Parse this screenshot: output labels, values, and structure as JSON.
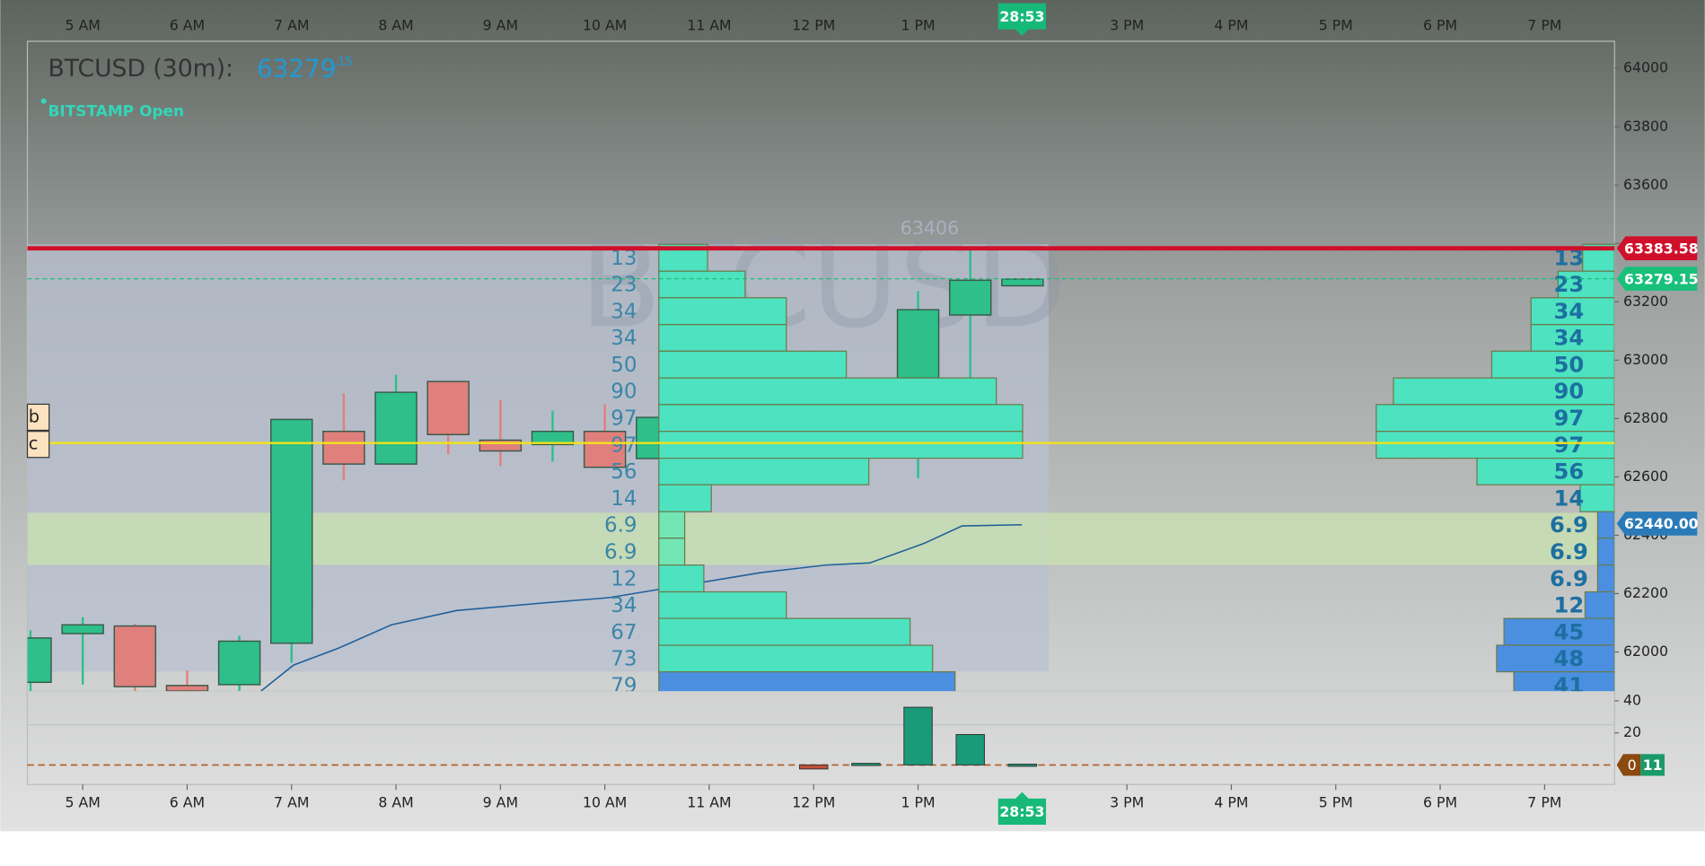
{
  "chart_data": {
    "type": "candlestick",
    "title": "BTCUSD (30m):",
    "last_price": "63279",
    "last_price_fraction": ".15",
    "exchange_status": "BITSTAMP Open",
    "watermark": "BTCUSD",
    "countdown": "28:53",
    "left_tags": [
      "b",
      "c"
    ],
    "xlim": [
      4.47,
      19.67
    ],
    "xticks": [
      {
        "value": 5,
        "label": "5 AM"
      },
      {
        "value": 6,
        "label": "6 AM"
      },
      {
        "value": 7,
        "label": "7 AM"
      },
      {
        "value": 8,
        "label": "8 AM"
      },
      {
        "value": 9,
        "label": "9 AM"
      },
      {
        "value": 10,
        "label": "10 AM"
      },
      {
        "value": 11,
        "label": "11 AM"
      },
      {
        "value": 12,
        "label": "12 PM"
      },
      {
        "value": 13,
        "label": "1 PM"
      },
      {
        "value": 15,
        "label": "3 PM"
      },
      {
        "value": 16,
        "label": "4 PM"
      },
      {
        "value": 17,
        "label": "5 PM"
      },
      {
        "value": 18,
        "label": "6 PM"
      },
      {
        "value": 19,
        "label": "7 PM"
      }
    ],
    "ylim": [
      61866,
      64093
    ],
    "yticks": [
      62000,
      62200,
      62400,
      62600,
      62800,
      63000,
      63200,
      63400,
      63600,
      63800,
      64000
    ],
    "candles": {
      "x": [
        4.5,
        5,
        5.5,
        6,
        6.5,
        7,
        7.5,
        8,
        8.5,
        9,
        9.5,
        10,
        10.5,
        13,
        13.5,
        14
      ],
      "open": [
        61896,
        62063,
        62089,
        61885,
        61888,
        62030,
        62756,
        62644,
        62927,
        62726,
        62711,
        62756,
        62663,
        62939,
        63155,
        63255
      ],
      "high": [
        62074,
        62119,
        62097,
        61937,
        62056,
        62797,
        62886,
        62950,
        62927,
        62864,
        62827,
        62849,
        62804,
        63237,
        63378,
        63278
      ],
      "low": [
        61866,
        61888,
        61866,
        61866,
        61866,
        61963,
        62588,
        62644,
        62678,
        62637,
        62652,
        62633,
        62663,
        62596,
        62939,
        63255
      ],
      "close": [
        62048,
        62093,
        61881,
        61866,
        62037,
        62797,
        62644,
        62890,
        62745,
        62689,
        62756,
        62633,
        62804,
        63173,
        63274,
        63278
      ],
      "up_color": "#2ebf8a",
      "down_color": "#e0807c"
    },
    "session_high": 63406,
    "price_lines": [
      {
        "value": 63383.58,
        "label": "63383.58",
        "color": "#d0102a",
        "style": "solid"
      },
      {
        "value": 63279.15,
        "label": "63279.15",
        "color": "#18c07a",
        "style": "dashed"
      },
      {
        "value": 62440,
        "label": "62440.00",
        "color": "#2a7ab8",
        "style": "none"
      }
    ],
    "poc": {
      "value": 62716,
      "color": "#f2e21a"
    },
    "value_area": {
      "x": [
        4.47,
        14.25
      ],
      "range": [
        61933,
        63397
      ],
      "color": "#b8c0d0"
    },
    "highlight_zone": {
      "range": [
        62298,
        62477
      ],
      "color": "#c8e0b0"
    },
    "volume_profiles": [
      {
        "anchor": "left",
        "start": 10.517,
        "bins": [
          63397,
          63305,
          63214,
          63122,
          63031,
          62939,
          62848,
          62756,
          62664,
          62573,
          62481,
          62390,
          62298,
          62206,
          62115,
          62023,
          61932,
          61840
        ],
        "values": [
          13,
          23,
          34,
          34,
          50,
          90,
          97,
          97,
          56,
          14,
          6.9,
          6.9,
          12,
          34,
          67,
          73,
          79
        ],
        "colors": [
          "#4de2c0",
          "#4de2c0",
          "#4de2c0",
          "#4de2c0",
          "#4de2c0",
          "#4de2c0",
          "#4de2c0",
          "#4de2c0",
          "#4de2c0",
          "#4de2c0",
          "#72e6b4",
          "#72e6b4",
          "#4de2c0",
          "#4de2c0",
          "#4de2c0",
          "#4de2c0",
          "#4a8fe0"
        ]
      },
      {
        "anchor": "right",
        "start": 19.67,
        "bins": [
          63397,
          63305,
          63214,
          63122,
          63031,
          62939,
          62848,
          62756,
          62664,
          62573,
          62481,
          62390,
          62298,
          62206,
          62115,
          62023,
          61932,
          61840
        ],
        "values": [
          13,
          23,
          34,
          34,
          50,
          90,
          97,
          97,
          56,
          14,
          6.9,
          6.9,
          6.9,
          12,
          45,
          48,
          41
        ],
        "colors": [
          "#4de2c0",
          "#4de2c0",
          "#4de2c0",
          "#4de2c0",
          "#4de2c0",
          "#4de2c0",
          "#4de2c0",
          "#4de2c0",
          "#4de2c0",
          "#4de2c0",
          "#4a8fe0",
          "#4a8fe0",
          "#4a8fe0",
          "#4a8fe0",
          "#4a8fe0",
          "#4a8fe0",
          "#4a8fe0"
        ]
      }
    ],
    "vwap": {
      "x": [
        6.707,
        7.019,
        7.436,
        7.956,
        8.581,
        9.413,
        10.038,
        10.663,
        11.495,
        12.12,
        12.536,
        13.057,
        13.421,
        13.994
      ],
      "values": [
        61866,
        61955,
        62011,
        62093,
        62142,
        62168,
        62186,
        62223,
        62272,
        62298,
        62305,
        62372,
        62432,
        62436
      ],
      "color": "#1f5f9a"
    },
    "volume": {
      "x": [
        12,
        12.5,
        13,
        13.5,
        14
      ],
      "values": [
        -2.5,
        1,
        36,
        19,
        0.5
      ],
      "colors": [
        "#c0503a",
        "#1a9a78",
        "#1a9a78",
        "#1a9a78",
        "#1a9a78"
      ],
      "ylim": [
        -12.2,
        46.1
      ],
      "yticks": [
        20,
        40
      ],
      "zero": 0,
      "current": 11
    }
  }
}
